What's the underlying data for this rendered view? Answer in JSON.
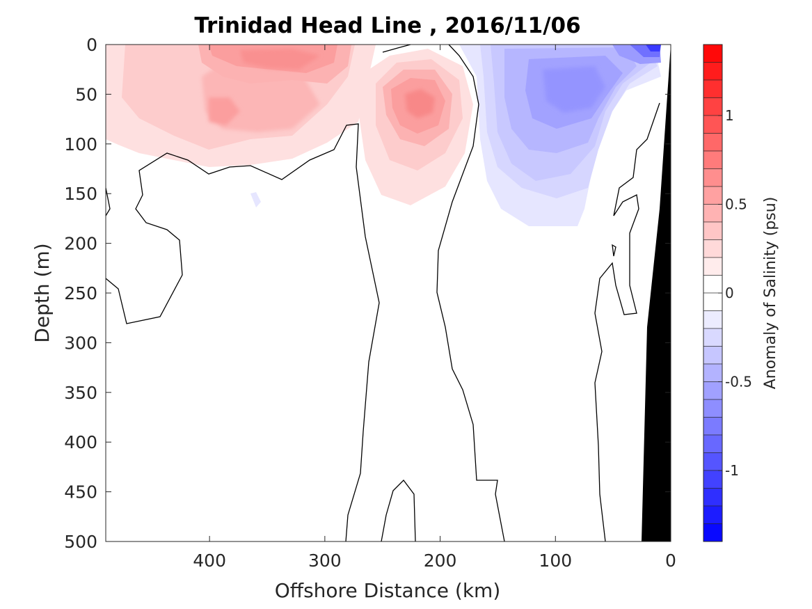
{
  "chart_data": {
    "type": "contour",
    "title": "Trinidad Head Line , 2016/11/06",
    "xlabel": "Offshore Distance (km)",
    "ylabel": "Depth (m)",
    "xlim": [
      0,
      490
    ],
    "x_reversed": true,
    "ylim": [
      0,
      500
    ],
    "y_reversed": true,
    "xticks": [
      "400",
      "300",
      "200",
      "100",
      "0"
    ],
    "xtick_values": [
      400,
      300,
      200,
      100,
      0
    ],
    "yticks": [
      "0",
      "50",
      "100",
      "150",
      "200",
      "250",
      "300",
      "350",
      "400",
      "450",
      "500"
    ],
    "ytick_values": [
      0,
      50,
      100,
      150,
      200,
      250,
      300,
      350,
      400,
      450,
      500
    ],
    "colorbar": {
      "label": "Anomaly of Salinity (psu)",
      "range": [
        -1.4,
        1.4
      ],
      "step": 0.1,
      "ticks": [
        "1",
        "0.5",
        "0",
        "-0.5",
        "-1"
      ],
      "tick_values": [
        1,
        0.5,
        0,
        -0.5,
        -1
      ],
      "positive_color": "#ff0000",
      "negative_color": "#0000ff"
    },
    "bathymetry_color": "#000000",
    "features": [
      {
        "kind": "positive anomaly",
        "center_km": 400,
        "center_depth_m": 60,
        "peak_psu": 0.3
      },
      {
        "kind": "positive anomaly",
        "center_km": 345,
        "center_depth_m": 20,
        "peak_psu": 0.4
      },
      {
        "kind": "positive anomaly",
        "center_km": 220,
        "center_depth_m": 55,
        "peak_psu": 0.6
      },
      {
        "kind": "negative anomaly",
        "center_km": 95,
        "center_depth_m": 45,
        "peak_psu": -0.5
      },
      {
        "kind": "negative anomaly",
        "center_km": 12,
        "center_depth_m": 5,
        "peak_psu": -0.8
      }
    ]
  }
}
